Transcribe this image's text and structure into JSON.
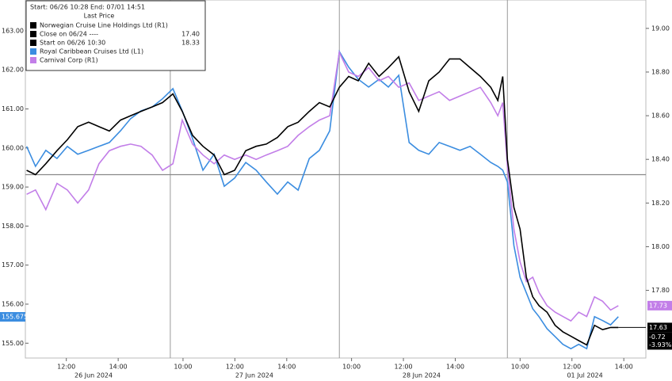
{
  "chart_data": {
    "type": "line",
    "legend": {
      "header": "Start: 06/26 10:28 End: 07/01 14:51",
      "subheader": "Last Price"
    },
    "reference_lines": [
      {
        "name": "Close on 06/24 ----",
        "value": 17.4,
        "value_label": "17.40",
        "color": "#000000"
      },
      {
        "name": "Start on 06/26 10:30",
        "value": 18.33,
        "value_label": "18.33",
        "color": "#000000"
      }
    ],
    "x": [
      0.97,
      1.31,
      1.71,
      2.14,
      2.54,
      2.94,
      3.36,
      3.76,
      4.16,
      4.59,
      4.98,
      5.38,
      5.81,
      6.21,
      6.61,
      6.97,
      7.37,
      7.77,
      8.2,
      8.59,
      8.99,
      9.42,
      9.82,
      10.21,
      10.64,
      11.04,
      11.44,
      11.87,
      12.26,
      12.66,
      13.03,
      13.39,
      13.76,
      14.16,
      14.56,
      14.92,
      15.32,
      15.72,
      16.09,
      16.48,
      16.88,
      17.28,
      17.68,
      18.07,
      18.47,
      18.87,
      19.14,
      19.33,
      19.51,
      19.76,
      20.0,
      20.24,
      20.49,
      20.73,
      21.04,
      21.35,
      21.65,
      21.96,
      22.26,
      22.57,
      22.87,
      23.18,
      23.49,
      23.79
    ],
    "xlim": [
      0.92,
      24.85
    ],
    "xticks": [
      {
        "value": 2.5,
        "label": "12:00"
      },
      {
        "value": 4.5,
        "label": "14:00"
      },
      {
        "value": 7,
        "label": "10:00"
      },
      {
        "value": 9,
        "label": "12:00"
      },
      {
        "value": 11,
        "label": "14:00"
      },
      {
        "value": 13.5,
        "label": "10:00"
      },
      {
        "value": 15.5,
        "label": "12:00"
      },
      {
        "value": 17.5,
        "label": "14:00"
      },
      {
        "value": 20,
        "label": "10:00"
      },
      {
        "value": 22,
        "label": "12:00"
      },
      {
        "value": 24,
        "label": "14:00"
      }
    ],
    "date_labels": [
      {
        "value": 3.55,
        "label": "26 Jun 2024"
      },
      {
        "value": 9.75,
        "label": "27 Jun 2024"
      },
      {
        "value": 16.2,
        "label": "28 Jun 2024"
      },
      {
        "value": 22.5,
        "label": "01 Jul 2024"
      }
    ],
    "session_breaks": [
      6.51,
      13.03,
      19.51
    ],
    "ylim": [
      154.62,
      163.79
    ],
    "yticks": [
      {
        "value": 155,
        "label": "155.00"
      },
      {
        "value": 156,
        "label": "156.00"
      },
      {
        "value": 157,
        "label": "157.00"
      },
      {
        "value": 158,
        "label": "158.00"
      },
      {
        "value": 159,
        "label": "159.00"
      },
      {
        "value": 160,
        "label": "160.00"
      },
      {
        "value": 161,
        "label": "161.00"
      },
      {
        "value": 162,
        "label": "162.00"
      },
      {
        "value": 163,
        "label": "163.00"
      }
    ],
    "y2lim": [
      17.49,
      19.13
    ],
    "y2ticks": [
      {
        "value": 17.8,
        "label": "17.80"
      },
      {
        "value": 18,
        "label": "18.00"
      },
      {
        "value": 18.2,
        "label": "18.20"
      },
      {
        "value": 18.4,
        "label": "18.40"
      },
      {
        "value": 18.6,
        "label": "18.60"
      },
      {
        "value": 18.8,
        "label": "18.80"
      },
      {
        "value": 19,
        "label": "19.00"
      }
    ],
    "series": [
      {
        "name": "Norwegian Cruise Line Holdings Ltd  (R1)",
        "color": "#000000",
        "axis": "y2",
        "last": 17.63,
        "net_change": -0.72,
        "pct_change_label": "-3.93%",
        "values": [
          18.35,
          18.33,
          18.38,
          18.44,
          18.49,
          18.55,
          18.57,
          18.55,
          18.53,
          18.58,
          18.6,
          18.62,
          18.64,
          18.66,
          18.7,
          18.62,
          18.51,
          18.46,
          18.42,
          18.33,
          18.35,
          18.44,
          18.46,
          18.47,
          18.5,
          18.55,
          18.57,
          18.62,
          18.66,
          18.64,
          18.73,
          18.78,
          18.76,
          18.84,
          18.78,
          18.82,
          18.87,
          18.71,
          18.62,
          18.76,
          18.8,
          18.86,
          18.86,
          18.82,
          18.78,
          18.73,
          18.67,
          18.78,
          18.4,
          18.18,
          18.08,
          17.86,
          17.77,
          17.73,
          17.7,
          17.64,
          17.61,
          17.59,
          17.57,
          17.55,
          17.64,
          17.62,
          17.63,
          17.63
        ]
      },
      {
        "name": "Royal Caribbean Cruises Ltd  (L1)",
        "color": "#3b8de0",
        "axis": "y",
        "last": 155.675,
        "values": [
          160.04,
          159.53,
          159.94,
          159.73,
          160.04,
          159.84,
          159.94,
          160.04,
          160.14,
          160.44,
          160.75,
          160.95,
          161.05,
          161.26,
          161.52,
          160.95,
          160.24,
          159.43,
          159.84,
          159.02,
          159.23,
          159.63,
          159.43,
          159.13,
          158.82,
          159.13,
          158.92,
          159.73,
          159.94,
          160.44,
          162.47,
          162.07,
          161.76,
          161.56,
          161.76,
          161.56,
          161.86,
          160.14,
          159.94,
          159.84,
          160.14,
          160.04,
          159.94,
          160.04,
          159.84,
          159.63,
          159.53,
          159.43,
          159.13,
          157.5,
          156.69,
          156.29,
          155.88,
          155.68,
          155.37,
          155.17,
          154.97,
          154.86,
          154.97,
          154.86,
          155.68,
          155.58,
          155.47,
          155.68
        ]
      },
      {
        "name": "Carnival Corp  (R1)",
        "color": "#c27ee8",
        "axis": "y2",
        "last": 17.73,
        "values": [
          18.24,
          18.26,
          18.17,
          18.29,
          18.26,
          18.2,
          18.26,
          18.38,
          18.44,
          18.46,
          18.47,
          18.46,
          18.42,
          18.35,
          18.38,
          18.58,
          18.47,
          18.42,
          18.38,
          18.42,
          18.4,
          18.42,
          18.4,
          18.42,
          18.44,
          18.46,
          18.51,
          18.55,
          18.58,
          18.6,
          18.89,
          18.8,
          18.78,
          18.82,
          18.76,
          18.78,
          18.73,
          18.75,
          18.67,
          18.69,
          18.71,
          18.67,
          18.69,
          18.71,
          18.73,
          18.66,
          18.6,
          18.66,
          18.37,
          18.08,
          17.93,
          17.84,
          17.86,
          17.79,
          17.73,
          17.7,
          17.68,
          17.66,
          17.7,
          17.68,
          17.77,
          17.75,
          17.71,
          17.73
        ]
      }
    ]
  }
}
